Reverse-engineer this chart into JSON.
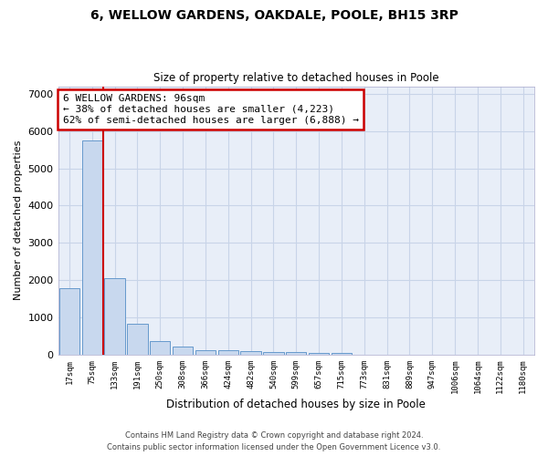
{
  "title1": "6, WELLOW GARDENS, OAKDALE, POOLE, BH15 3RP",
  "title2": "Size of property relative to detached houses in Poole",
  "xlabel": "Distribution of detached houses by size in Poole",
  "ylabel": "Number of detached properties",
  "categories": [
    "17sqm",
    "75sqm",
    "133sqm",
    "191sqm",
    "250sqm",
    "308sqm",
    "366sqm",
    "424sqm",
    "482sqm",
    "540sqm",
    "599sqm",
    "657sqm",
    "715sqm",
    "773sqm",
    "831sqm",
    "889sqm",
    "947sqm",
    "1006sqm",
    "1064sqm",
    "1122sqm",
    "1180sqm"
  ],
  "values": [
    1780,
    5750,
    2060,
    820,
    360,
    210,
    130,
    110,
    100,
    80,
    70,
    60,
    50,
    0,
    0,
    0,
    0,
    0,
    0,
    0,
    0
  ],
  "bar_color": "#c8d8ee",
  "bar_edge_color": "#6699cc",
  "vline_x": 1.5,
  "vline_color": "#cc0000",
  "annotation_text": "6 WELLOW GARDENS: 96sqm\n← 38% of detached houses are smaller (4,223)\n62% of semi-detached houses are larger (6,888) →",
  "annotation_box_color": "#ffffff",
  "annotation_box_edge": "#cc0000",
  "ylim": [
    0,
    7200
  ],
  "yticks": [
    0,
    1000,
    2000,
    3000,
    4000,
    5000,
    6000,
    7000
  ],
  "grid_color": "#c8d4e8",
  "bg_color": "#e8eef8",
  "footer1": "Contains HM Land Registry data © Crown copyright and database right 2024.",
  "footer2": "Contains public sector information licensed under the Open Government Licence v3.0."
}
